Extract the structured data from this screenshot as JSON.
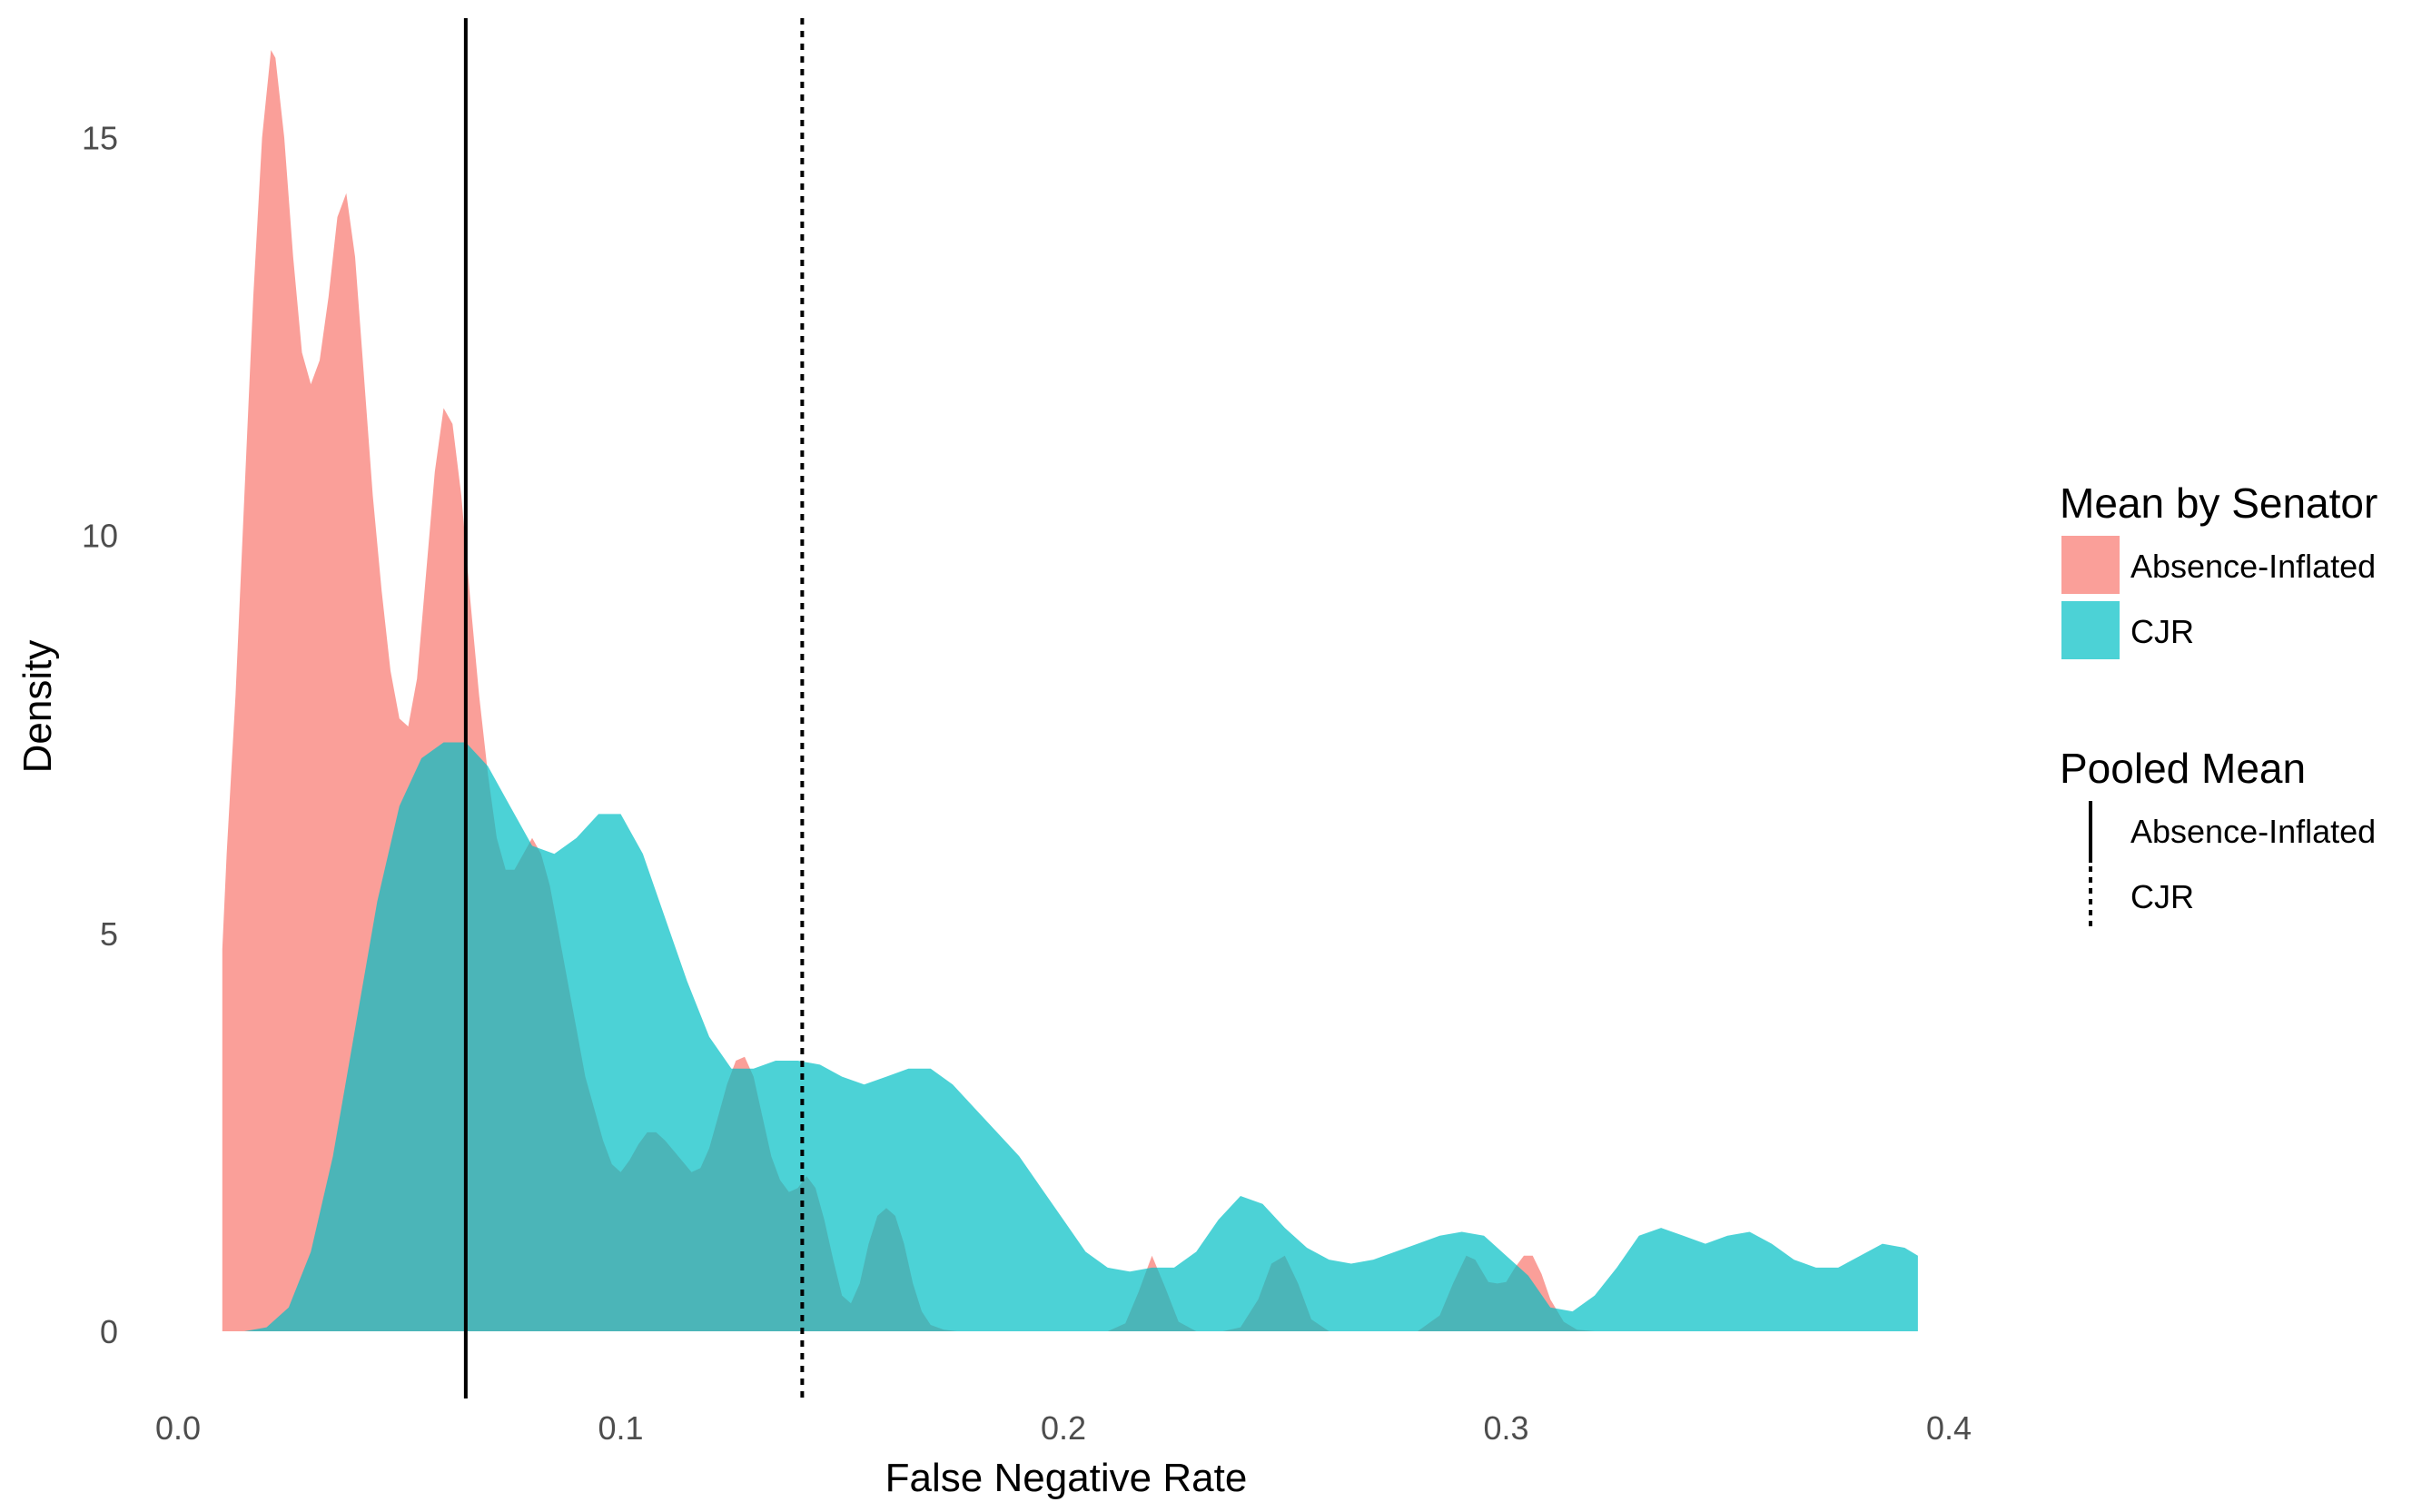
{
  "chart_data": {
    "type": "area",
    "xlabel": "False Negative Rate",
    "ylabel": "Density",
    "xlim": [
      0.0,
      0.4
    ],
    "ylim": [
      0,
      16.5
    ],
    "x_ticks": [
      "0.0",
      "0.1",
      "0.2",
      "0.3",
      "0.4"
    ],
    "y_ticks": [
      "0",
      "5",
      "10",
      "15"
    ],
    "grid": false,
    "legend_position": "right",
    "fill_legend": {
      "title": "Mean by Senator",
      "items": [
        "Absence-Inflated",
        "CJR"
      ]
    },
    "line_legend": {
      "title": "Pooled Mean",
      "items": [
        "Absence-Inflated",
        "CJR"
      ]
    },
    "series": [
      {
        "name": "Absence-Inflated",
        "color": "#F8766D",
        "x": [
          0.01,
          0.011,
          0.013,
          0.015,
          0.017,
          0.019,
          0.021,
          0.022,
          0.024,
          0.026,
          0.028,
          0.03,
          0.032,
          0.034,
          0.036,
          0.038,
          0.04,
          0.042,
          0.044,
          0.046,
          0.048,
          0.05,
          0.052,
          0.054,
          0.056,
          0.058,
          0.06,
          0.062,
          0.064,
          0.066,
          0.068,
          0.07,
          0.072,
          0.074,
          0.076,
          0.078,
          0.08,
          0.082,
          0.084,
          0.086,
          0.088,
          0.09,
          0.092,
          0.094,
          0.096,
          0.098,
          0.1,
          0.102,
          0.104,
          0.106,
          0.108,
          0.11,
          0.113,
          0.116,
          0.118,
          0.12,
          0.122,
          0.124,
          0.126,
          0.128,
          0.13,
          0.132,
          0.134,
          0.136,
          0.138,
          0.14,
          0.142,
          0.144,
          0.146,
          0.148,
          0.15,
          0.152,
          0.154,
          0.156,
          0.158,
          0.16,
          0.162,
          0.164,
          0.166,
          0.168,
          0.17,
          0.173,
          0.176,
          0.18,
          0.19,
          0.2,
          0.21,
          0.214,
          0.217,
          0.22,
          0.223,
          0.226,
          0.23,
          0.236,
          0.24,
          0.244,
          0.247,
          0.25,
          0.253,
          0.256,
          0.26,
          0.27,
          0.28,
          0.285,
          0.288,
          0.291,
          0.293,
          0.296,
          0.298,
          0.3,
          0.302,
          0.304,
          0.306,
          0.308,
          0.31,
          0.313,
          0.316,
          0.32
        ],
        "values": [
          4.8,
          6.0,
          8.0,
          10.5,
          13.0,
          15.0,
          16.1,
          16.0,
          15.0,
          13.5,
          12.3,
          11.9,
          12.2,
          13.0,
          14.0,
          14.3,
          13.5,
          12.0,
          10.5,
          9.3,
          8.3,
          7.7,
          7.6,
          8.2,
          9.5,
          10.8,
          11.6,
          11.4,
          10.5,
          9.2,
          8.0,
          7.0,
          6.2,
          5.8,
          5.8,
          6.0,
          6.2,
          6.0,
          5.6,
          5.0,
          4.4,
          3.8,
          3.2,
          2.8,
          2.4,
          2.1,
          2.0,
          2.15,
          2.35,
          2.5,
          2.5,
          2.4,
          2.2,
          2.0,
          2.05,
          2.3,
          2.7,
          3.1,
          3.4,
          3.45,
          3.2,
          2.7,
          2.2,
          1.9,
          1.75,
          1.8,
          1.95,
          1.8,
          1.4,
          0.9,
          0.45,
          0.35,
          0.6,
          1.1,
          1.45,
          1.55,
          1.45,
          1.1,
          0.6,
          0.25,
          0.08,
          0.02,
          0.0,
          0.0,
          0.0,
          0.0,
          0.0,
          0.1,
          0.5,
          0.95,
          0.55,
          0.12,
          0.0,
          0.0,
          0.05,
          0.4,
          0.85,
          0.95,
          0.6,
          0.15,
          0.0,
          0.0,
          0.0,
          0.2,
          0.6,
          0.95,
          0.9,
          0.62,
          0.6,
          0.62,
          0.8,
          0.95,
          0.95,
          0.72,
          0.4,
          0.12,
          0.02,
          0.0
        ]
      },
      {
        "name": "CJR",
        "color": "#00BFC4",
        "x": [
          0.01,
          0.015,
          0.02,
          0.025,
          0.03,
          0.035,
          0.04,
          0.045,
          0.05,
          0.055,
          0.06,
          0.065,
          0.07,
          0.075,
          0.08,
          0.085,
          0.09,
          0.095,
          0.1,
          0.105,
          0.11,
          0.115,
          0.12,
          0.125,
          0.13,
          0.135,
          0.14,
          0.145,
          0.15,
          0.155,
          0.16,
          0.165,
          0.17,
          0.175,
          0.18,
          0.185,
          0.19,
          0.195,
          0.2,
          0.205,
          0.21,
          0.215,
          0.22,
          0.225,
          0.23,
          0.235,
          0.24,
          0.245,
          0.25,
          0.255,
          0.26,
          0.265,
          0.27,
          0.275,
          0.28,
          0.285,
          0.29,
          0.295,
          0.3,
          0.305,
          0.31,
          0.315,
          0.32,
          0.325,
          0.33,
          0.335,
          0.34,
          0.345,
          0.35,
          0.355,
          0.36,
          0.365,
          0.37,
          0.375,
          0.38,
          0.385,
          0.39,
          0.393
        ],
        "values": [
          0.0,
          0.0,
          0.05,
          0.3,
          1.0,
          2.2,
          3.8,
          5.4,
          6.6,
          7.2,
          7.4,
          7.4,
          7.1,
          6.6,
          6.1,
          6.0,
          6.2,
          6.5,
          6.5,
          6.0,
          5.2,
          4.4,
          3.7,
          3.3,
          3.3,
          3.4,
          3.4,
          3.35,
          3.2,
          3.1,
          3.2,
          3.3,
          3.3,
          3.1,
          2.8,
          2.5,
          2.2,
          1.8,
          1.4,
          1.0,
          0.8,
          0.75,
          0.8,
          0.8,
          1.0,
          1.4,
          1.7,
          1.6,
          1.3,
          1.05,
          0.9,
          0.85,
          0.9,
          1.0,
          1.1,
          1.2,
          1.25,
          1.2,
          0.95,
          0.7,
          0.3,
          0.25,
          0.45,
          0.8,
          1.2,
          1.3,
          1.2,
          1.1,
          1.2,
          1.25,
          1.1,
          0.9,
          0.8,
          0.8,
          0.95,
          1.1,
          1.05,
          0.95
        ]
      }
    ],
    "reference_lines": [
      {
        "name": "Absence-Inflated",
        "x": 0.065,
        "style": "solid"
      },
      {
        "name": "CJR",
        "x": 0.141,
        "style": "dotted"
      }
    ]
  }
}
